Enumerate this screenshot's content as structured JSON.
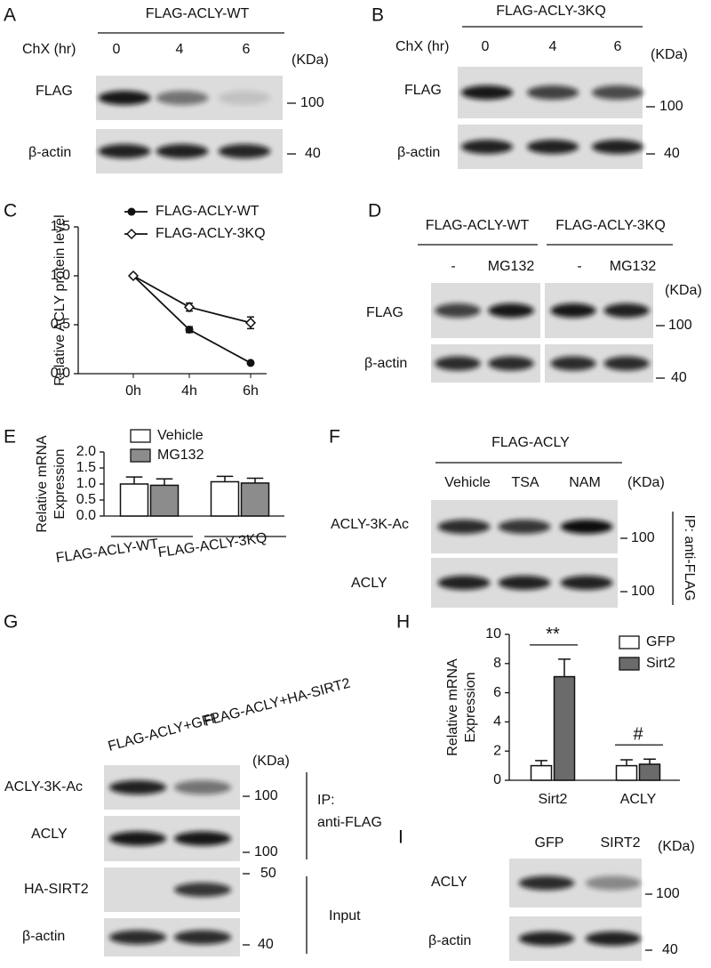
{
  "blots": {
    "A": {
      "label": "A",
      "header": "FLAG-ACLY-WT",
      "treatment": "ChX (hr)",
      "lanes": [
        "0",
        "4",
        "6"
      ],
      "unit": "(KDa)",
      "rows": [
        {
          "name": "FLAG",
          "marker": "100"
        },
        {
          "name": "β-actin",
          "marker": "40"
        }
      ]
    },
    "B": {
      "label": "B",
      "header": "FLAG-ACLY-3KQ",
      "treatment": "ChX (hr)",
      "lanes": [
        "0",
        "4",
        "6"
      ],
      "unit": "(KDa)",
      "rows": [
        {
          "name": "FLAG",
          "marker": "100"
        },
        {
          "name": "β-actin",
          "marker": "40"
        }
      ]
    },
    "D": {
      "label": "D",
      "groups": [
        {
          "name": "FLAG-ACLY-WT",
          "lanes": [
            "-",
            "MG132"
          ]
        },
        {
          "name": "FLAG-ACLY-3KQ",
          "lanes": [
            "-",
            "MG132"
          ]
        }
      ],
      "unit": "(KDa)",
      "rows": [
        {
          "name": "FLAG",
          "marker": "100"
        },
        {
          "name": "β-actin",
          "marker": "40"
        }
      ]
    },
    "F": {
      "label": "F",
      "header": "FLAG-ACLY",
      "lanes": [
        "Vehicle",
        "TSA",
        "NAM"
      ],
      "unit": "(KDa)",
      "rows": [
        {
          "name": "ACLY-3K-Ac",
          "marker": "100"
        },
        {
          "name": "ACLY",
          "marker": "100"
        }
      ],
      "side": "IP: anti-FLAG"
    },
    "G": {
      "label": "G",
      "lanes": [
        "FLAG-ACLY+GFP",
        "FLAG-ACLY+HA-SIRT2"
      ],
      "unit": "(KDa)",
      "rows": [
        {
          "name": "ACLY-3K-Ac",
          "marker": "100"
        },
        {
          "name": "ACLY",
          "marker": "100"
        },
        {
          "name": "HA-SIRT2",
          "marker": "50"
        },
        {
          "name": "β-actin",
          "marker": "40"
        }
      ],
      "sides": [
        [
          "IP:",
          "anti-FLAG"
        ],
        [
          "Input"
        ]
      ]
    },
    "I": {
      "label": "I",
      "lanes": [
        "GFP",
        "SIRT2"
      ],
      "unit": "(KDa)",
      "rows": [
        {
          "name": "ACLY",
          "marker": "100"
        },
        {
          "name": "β-actin",
          "marker": "40"
        }
      ]
    }
  },
  "chart_data": [
    {
      "type": "line",
      "panel": "C",
      "ylabel": "Relative ACLY protein level",
      "categories": [
        "0h",
        "4h",
        "6h"
      ],
      "series": [
        {
          "name": "FLAG-ACLY-WT",
          "color": "#111111",
          "values": [
            1.0,
            0.45,
            0.11
          ],
          "errors": [
            0.01,
            0.03,
            0.01
          ]
        },
        {
          "name": "FLAG-ACLY-3KQ",
          "color": "#111111",
          "values": [
            1.0,
            0.68,
            0.52
          ],
          "errors": [
            0.01,
            0.04,
            0.06
          ]
        }
      ],
      "ylim": [
        0,
        1.5
      ],
      "yticks": [
        {
          "value": 0,
          "label": "0.0"
        },
        0.5,
        {
          "value": 1,
          "label": "1.0"
        },
        1.5
      ]
    },
    {
      "type": "bar",
      "panel": "E",
      "ylabel": [
        "Relative mRNA",
        "Expression"
      ],
      "categories": [
        "FLAG-ACLY-WT",
        "FLAG-ACLY-3KQ"
      ],
      "series": [
        {
          "name": "Vehicle",
          "color": "#ffffff",
          "values": [
            1.0,
            1.07
          ],
          "errors": [
            0.22,
            0.17
          ]
        },
        {
          "name": "MG132",
          "color": "#8c8c8c",
          "values": [
            0.96,
            1.03
          ],
          "errors": [
            0.2,
            0.15
          ]
        }
      ],
      "ylim": [
        0,
        2
      ],
      "yticks": [
        {
          "value": 0,
          "label": "0.0"
        },
        0.5,
        {
          "value": 1,
          "label": "1.0"
        },
        1.5,
        {
          "value": 2,
          "label": "2.0"
        }
      ]
    },
    {
      "type": "bar",
      "panel": "H",
      "ylabel": [
        "Relative mRNA",
        "Expression"
      ],
      "categories": [
        "Sirt2",
        "ACLY"
      ],
      "series": [
        {
          "name": "GFP",
          "color": "#ffffff",
          "values": [
            1.0,
            1.0
          ],
          "errors": [
            0.35,
            0.4
          ]
        },
        {
          "name": "Sirt2",
          "color": "#6b6b6b",
          "values": [
            7.1,
            1.1
          ],
          "errors": [
            1.2,
            0.35
          ]
        }
      ],
      "ylim": [
        0,
        10
      ],
      "yticks": [
        0,
        2,
        4,
        6,
        8,
        10
      ],
      "annotations": [
        {
          "text": "**",
          "category": 0
        },
        {
          "text": "#",
          "category": 1
        }
      ]
    }
  ]
}
